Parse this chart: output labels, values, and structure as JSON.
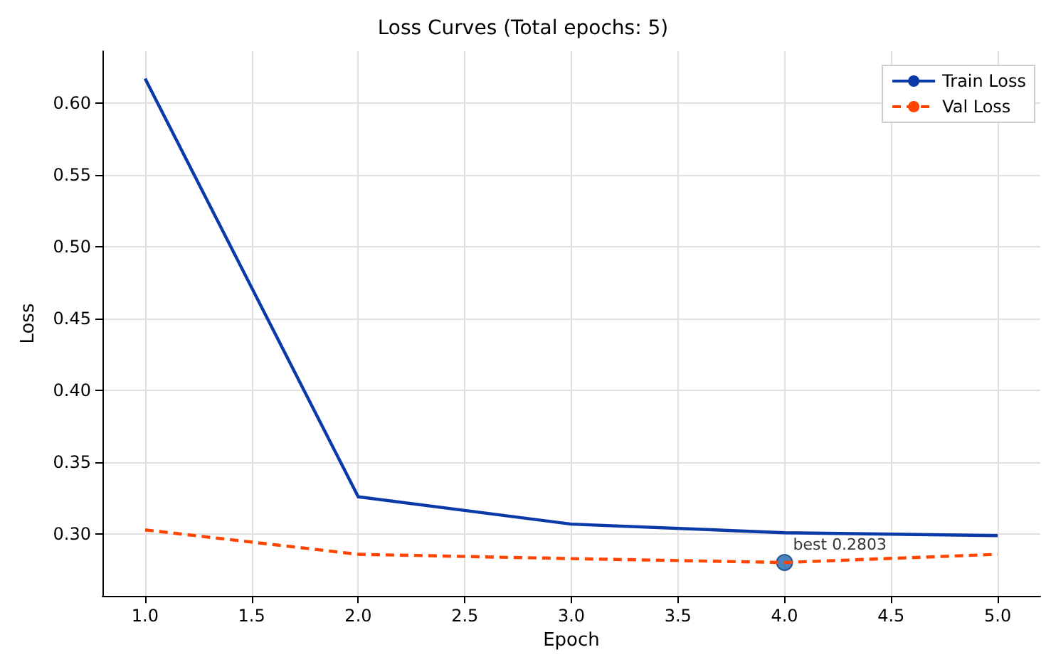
{
  "chart_data": {
    "type": "line",
    "title": "Loss Curves (Total epochs: 5)",
    "xlabel": "Epoch",
    "ylabel": "Loss",
    "x": [
      1,
      2,
      3,
      4,
      5
    ],
    "series": [
      {
        "name": "Train Loss",
        "color": "#0a3aa8",
        "values": [
          0.617,
          0.326,
          0.307,
          0.301,
          0.299
        ],
        "line_style": "solid",
        "marker": "none"
      },
      {
        "name": "Val Loss",
        "color": "#ff4500",
        "values": [
          0.303,
          0.286,
          0.283,
          0.2803,
          0.286
        ],
        "line_style": "dashed",
        "marker": "none"
      },
      {
        "type": "scatter",
        "color": "#1f65b0",
        "x": [
          4
        ],
        "values": [
          0.2803
        ],
        "marker": "circle"
      }
    ],
    "annotations": [
      {
        "text": "best 0.2803",
        "x": 4,
        "y": 0.2803
      }
    ],
    "xlim": [
      0.8,
      5.2
    ],
    "xticks": [
      {
        "value": 1,
        "label": "1.0"
      },
      {
        "value": 1.5,
        "label": "1.5"
      },
      {
        "value": 2,
        "label": "2.0"
      },
      {
        "value": 2.5,
        "label": "2.5"
      },
      {
        "value": 3,
        "label": "3.0"
      },
      {
        "value": 3.5,
        "label": "3.5"
      },
      {
        "value": 4,
        "label": "4.0"
      },
      {
        "value": 4.5,
        "label": "4.5"
      },
      {
        "value": 5,
        "label": "5.0"
      }
    ],
    "ylim": [
      0.257,
      0.636
    ],
    "yticks": [
      {
        "value": 0.3,
        "label": "0.30"
      },
      {
        "value": 0.35,
        "label": "0.35"
      },
      {
        "value": 0.4,
        "label": "0.40"
      },
      {
        "value": 0.45,
        "label": "0.45"
      },
      {
        "value": 0.5,
        "label": "0.50"
      },
      {
        "value": 0.55,
        "label": "0.55"
      },
      {
        "value": 0.6,
        "label": "0.60"
      }
    ],
    "grid": true,
    "legend": "top right"
  }
}
